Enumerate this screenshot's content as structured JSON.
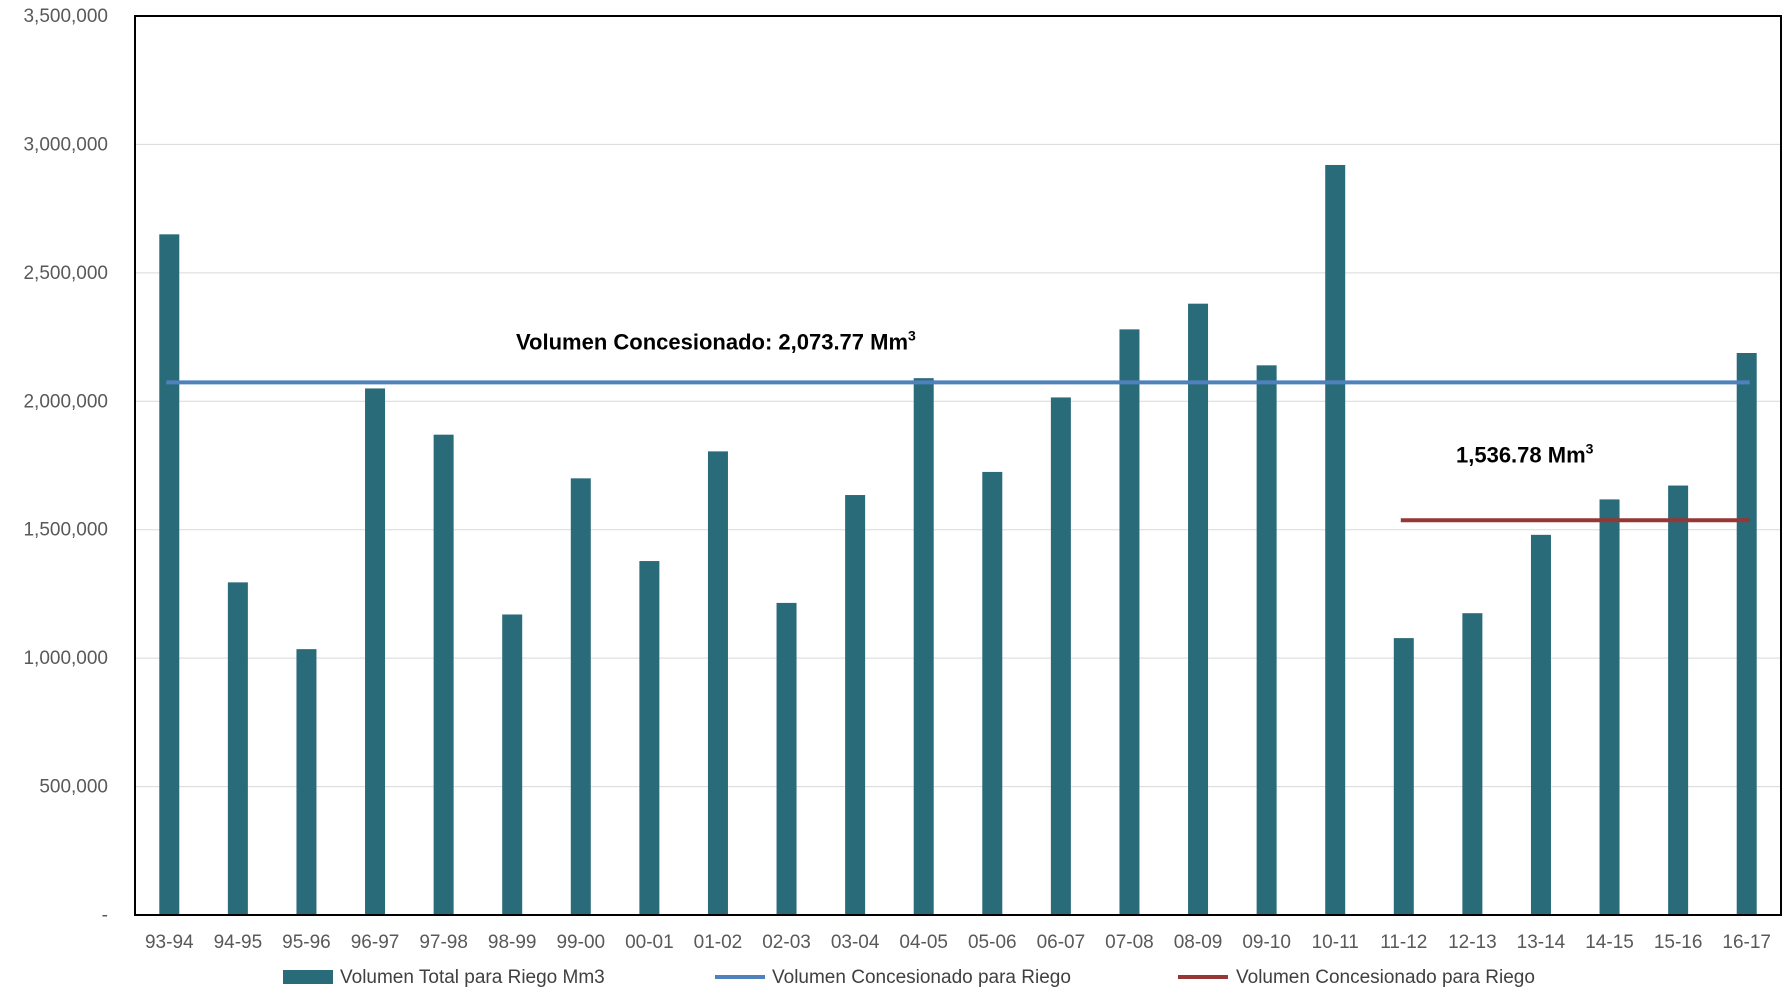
{
  "chart_data": {
    "type": "bar",
    "title": "",
    "xlabel": "",
    "ylabel": "",
    "ylim": [
      0,
      3500000
    ],
    "y_ticks": [
      0,
      500000,
      1000000,
      1500000,
      2000000,
      2500000,
      3000000,
      3500000
    ],
    "y_tick_labels": [
      "-",
      "500,000",
      "1,000,000",
      "1,500,000",
      "2,000,000",
      "2,500,000",
      "3,000,000",
      "3,500,000"
    ],
    "grid": true,
    "legend_position": "bottom",
    "categories": [
      "93-94",
      "94-95",
      "95-96",
      "96-97",
      "97-98",
      "98-99",
      "99-00",
      "00-01",
      "01-02",
      "02-03",
      "03-04",
      "04-05",
      "05-06",
      "06-07",
      "07-08",
      "08-09",
      "09-10",
      "10-11",
      "11-12",
      "12-13",
      "13-14",
      "14-15",
      "15-16",
      "16-17"
    ],
    "series": [
      {
        "name": "Volumen Total para Riego Mm3",
        "type": "bar",
        "color": "#2a6b7a",
        "values": [
          2650000,
          1295000,
          1035000,
          2050000,
          1870000,
          1170000,
          1700000,
          1378000,
          1805000,
          1215000,
          1635000,
          2090000,
          1725000,
          2015000,
          2280000,
          2380000,
          2140000,
          2920000,
          1078000,
          1175000,
          1480000,
          1618000,
          1672000,
          2188000
        ]
      },
      {
        "name": "Volumen Concesionado para Riego",
        "type": "line",
        "color": "#4f81bd",
        "from": "93-94",
        "to": "16-17",
        "value": 2073770
      },
      {
        "name": "Volumen Concesionado para Riego",
        "type": "line",
        "color": "#953735",
        "from": "11-12",
        "to": "16-17",
        "value": 1536780
      }
    ],
    "annotations": [
      {
        "text": "Volumen Concesionado:  2,073.77 Mm",
        "sup": "3"
      },
      {
        "text": "1,536.78 Mm",
        "sup": "3"
      }
    ]
  }
}
